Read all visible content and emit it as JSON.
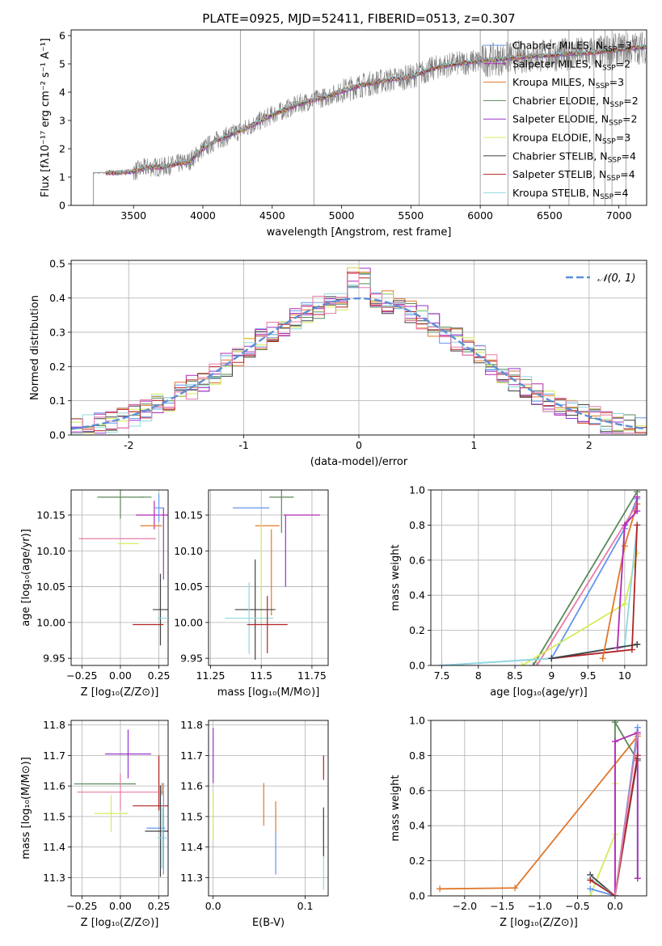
{
  "figure": {
    "title": "PLATE=0925, MJD=52411, FIBERID=0513, z=0.307"
  },
  "colors": {
    "Chabrier MILES": "#6495ed",
    "Salpeter MILES": "#b22ab2",
    "Kroupa MILES": "#e0782a",
    "Chabrier ELODIE": "#5a8a5a",
    "Salpeter ELODIE": "#9932cc",
    "Kroupa ELODIE": "#d4ec5a",
    "Chabrier STELIB": "#404040",
    "Salpeter STELIB": "#b22222",
    "Kroupa STELIB": "#8fd8e0",
    "pink": "#e87aa8",
    "data": "#808080",
    "gaussian": "#5b8fd6"
  },
  "chart_data": [
    {
      "type": "line",
      "id": "spectrum",
      "xlabel": "wavelength [Angstrom, rest frame]",
      "ylabel": "Flux [fλ10⁻¹⁷ erg cm⁻² s⁻¹ A⁻¹]",
      "xlim": [
        3050,
        7200
      ],
      "ylim": [
        0,
        6.2
      ],
      "xticks": [
        3500,
        4000,
        4500,
        5000,
        5500,
        6000,
        6500,
        7000
      ],
      "yticks": [
        0,
        1,
        2,
        3,
        4,
        5,
        6
      ],
      "grid": false,
      "legend": "upper-right",
      "legend_entries": [
        {
          "label": "Chabrier MILES, N",
          "sub": "SSP",
          "suffix": "=3",
          "color": "#6495ed"
        },
        {
          "label": "Salpeter MILES, N",
          "sub": "SSP",
          "suffix": "=2",
          "color": "#b22ab2"
        },
        {
          "label": "Kroupa MILES, N",
          "sub": "SSP",
          "suffix": "=3",
          "color": "#e0782a"
        },
        {
          "label": "Chabrier ELODIE, N",
          "sub": "SSP",
          "suffix": "=2",
          "color": "#5a8a5a"
        },
        {
          "label": "Salpeter ELODIE, N",
          "sub": "SSP",
          "suffix": "=2",
          "color": "#9932cc"
        },
        {
          "label": "Kroupa ELODIE, N",
          "sub": "SSP",
          "suffix": "=3",
          "color": "#d4ec5a"
        },
        {
          "label": "Chabrier STELIB, N",
          "sub": "SSP",
          "suffix": "=4",
          "color": "#404040"
        },
        {
          "label": "Salpeter STELIB, N",
          "sub": "SSP",
          "suffix": "=4",
          "color": "#b22222"
        },
        {
          "label": "Kroupa STELIB, N",
          "sub": "SSP",
          "suffix": "=4",
          "color": "#8fd8e0"
        }
      ],
      "continuum": [
        [
          3210,
          1.15
        ],
        [
          3400,
          1.15
        ],
        [
          3500,
          1.2
        ],
        [
          3600,
          1.35
        ],
        [
          3700,
          1.35
        ],
        [
          3800,
          1.45
        ],
        [
          3900,
          1.55
        ],
        [
          4000,
          2.0
        ],
        [
          4100,
          2.3
        ],
        [
          4300,
          2.7
        ],
        [
          4500,
          3.2
        ],
        [
          4700,
          3.6
        ],
        [
          4900,
          3.85
        ],
        [
          5100,
          4.2
        ],
        [
          5300,
          4.4
        ],
        [
          5500,
          4.55
        ],
        [
          5700,
          4.9
        ],
        [
          5900,
          5.05
        ],
        [
          6100,
          5.15
        ],
        [
          6300,
          5.25
        ],
        [
          6500,
          5.3
        ],
        [
          6800,
          5.4
        ],
        [
          7000,
          5.5
        ],
        [
          7200,
          5.6
        ]
      ],
      "spikes": [
        4270,
        4800,
        5560,
        6000,
        6200,
        6640,
        6820,
        6900,
        6950,
        7050
      ]
    },
    {
      "type": "bar",
      "id": "residuals",
      "xlabel": "(data-model)/error",
      "ylabel": "Normed distribution",
      "xlim": [
        -2.5,
        2.5
      ],
      "ylim": [
        0,
        0.51
      ],
      "xticks": [
        -2,
        -1,
        0,
        1,
        2
      ],
      "yticks": [
        0.0,
        0.1,
        0.2,
        0.3,
        0.4,
        0.5
      ],
      "grid": true,
      "legend": "upper-right",
      "legend_label": "𝒩(0, 1)",
      "bin_width": 0.1
    },
    {
      "type": "scatter",
      "id": "age-vs-Z",
      "xlabel": "Z [log₁₀(Z/Z⊙)]",
      "ylabel": "age  [log₁₀(age/yr)]",
      "xlim": [
        -0.32,
        0.31
      ],
      "ylim": [
        9.94,
        10.185
      ],
      "xticks": [
        -0.25,
        0.0,
        0.25
      ],
      "xticklabels": [
        "−0.25",
        "0.00",
        "0.25"
      ],
      "yticks": [
        9.95,
        10.0,
        10.05,
        10.1,
        10.15
      ],
      "grid": true,
      "points": [
        {
          "x": 0.0,
          "y": 10.175,
          "xerr": 0.15,
          "yerr": 0.03,
          "color": "#5a8a5a"
        },
        {
          "x": 0.17,
          "y": 10.175,
          "xerr": 0.0,
          "yerr": 0.0,
          "color": "#5a8a5a"
        },
        {
          "x": 0.22,
          "y": 10.15,
          "xerr": 0.12,
          "yerr": 0.02,
          "color": "#b22ab2"
        },
        {
          "x": 0.25,
          "y": 10.16,
          "xerr": 0.03,
          "yerr": 0.02,
          "color": "#6495ed"
        },
        {
          "x": 0.2,
          "y": 10.135,
          "xerr": 0.07,
          "yerr": 0.0,
          "color": "#e0782a"
        },
        {
          "x": -0.02,
          "y": 10.117,
          "xerr": 0.25,
          "yerr": 0.0,
          "color": "#e87aa8"
        },
        {
          "x": 0.05,
          "y": 10.11,
          "xerr": 0.07,
          "yerr": 0.0,
          "color": "#d4ec5a"
        },
        {
          "x": 0.28,
          "y": 10.11,
          "xerr": 0.0,
          "yerr": 0.05,
          "color": "#9932cc"
        },
        {
          "x": 0.26,
          "y": 10.018,
          "xerr": 0.05,
          "yerr": 0.05,
          "color": "#404040"
        },
        {
          "x": 0.27,
          "y": 10.006,
          "xerr": 0.03,
          "yerr": 0.0,
          "color": "#8fd8e0"
        },
        {
          "x": 0.18,
          "y": 9.997,
          "xerr": 0.1,
          "yerr": 0.0,
          "color": "#b22222"
        }
      ]
    },
    {
      "type": "scatter",
      "id": "age-vs-mass",
      "xlabel": "mass [log₁₀(M/M⊙)]",
      "ylabel": "",
      "xlim": [
        11.24,
        11.83
      ],
      "ylim": [
        9.94,
        10.185
      ],
      "xticks": [
        11.25,
        11.5,
        11.75
      ],
      "yticks": [
        9.95,
        10.0,
        10.05,
        10.1,
        10.15
      ],
      "grid": true,
      "points": [
        {
          "x": 11.6,
          "y": 10.175,
          "xerr": 0.06,
          "yerr": 0.05,
          "color": "#5a8a5a"
        },
        {
          "x": 11.45,
          "y": 10.16,
          "xerr": 0.09,
          "yerr": 0.0,
          "color": "#6495ed"
        },
        {
          "x": 11.7,
          "y": 10.15,
          "xerr": 0.09,
          "yerr": 0.0,
          "color": "#b22ab2"
        },
        {
          "x": 11.53,
          "y": 10.135,
          "xerr": 0.06,
          "yerr": 0.0,
          "color": "#e0782a"
        },
        {
          "x": 11.62,
          "y": 10.1,
          "xerr": 0.0,
          "yerr": 0.05,
          "color": "#9932cc"
        },
        {
          "x": 11.55,
          "y": 10.07,
          "xerr": 0.0,
          "yerr": 0.06,
          "color": "#e0782a"
        },
        {
          "x": 11.5,
          "y": 10.07,
          "xerr": 0.0,
          "yerr": 0.07,
          "color": "#d4ec5a"
        },
        {
          "x": 11.47,
          "y": 10.018,
          "xerr": 0.1,
          "yerr": 0.07,
          "color": "#404040"
        },
        {
          "x": 11.44,
          "y": 10.006,
          "xerr": 0.12,
          "yerr": 0.05,
          "color": "#8fd8e0"
        },
        {
          "x": 11.53,
          "y": 9.997,
          "xerr": 0.1,
          "yerr": 0.04,
          "color": "#b22222"
        }
      ]
    },
    {
      "type": "line",
      "id": "massweight-vs-age",
      "xlabel": "age  [log₁₀(age/yr)]",
      "ylabel": "mass weight",
      "xlim": [
        7.35,
        10.3
      ],
      "ylim": [
        0,
        1.0
      ],
      "xticks": [
        7.5,
        8.0,
        8.5,
        9.0,
        9.5,
        10.0
      ],
      "yticks": [
        0.0,
        0.2,
        0.4,
        0.6,
        0.8,
        1.0
      ],
      "grid": true,
      "series": [
        {
          "color": "#5a8a5a",
          "x": [
            8.75,
            10.17
          ],
          "y": [
            0.0,
            0.99
          ]
        },
        {
          "color": "#6495ed",
          "x": [
            7.5,
            9.0,
            10.0,
            10.17
          ],
          "y": [
            0.0,
            0.04,
            0.78,
            0.95
          ]
        },
        {
          "color": "#e87aa8",
          "x": [
            8.8,
            10.17
          ],
          "y": [
            0.0,
            0.92
          ]
        },
        {
          "color": "#d4ec5a",
          "x": [
            8.6,
            10.0,
            10.17
          ],
          "y": [
            0.0,
            0.35,
            0.64
          ]
        },
        {
          "color": "#8fd8e0",
          "x": [
            7.5,
            9.0,
            10.0,
            10.17
          ],
          "y": [
            0.0,
            0.04,
            0.11,
            0.8
          ]
        },
        {
          "color": "#b22222",
          "x": [
            9.0,
            10.1,
            10.17
          ],
          "y": [
            0.04,
            0.09,
            0.8
          ]
        },
        {
          "color": "#404040",
          "x": [
            9.0,
            10.17,
            10.17
          ],
          "y": [
            0.04,
            0.12,
            0.12
          ]
        },
        {
          "color": "#e0782a",
          "x": [
            9.7,
            10.0,
            10.17
          ],
          "y": [
            0.04,
            0.68,
            0.92
          ]
        },
        {
          "color": "#b22ab2",
          "x": [
            9.9,
            10.0,
            10.17,
            10.17
          ],
          "y": [
            0.1,
            0.8,
            0.88,
            0.96
          ]
        }
      ]
    },
    {
      "type": "scatter",
      "id": "mass-vs-Z",
      "xlabel": "Z [log₁₀(Z/Z⊙)]",
      "ylabel": "mass [log₁₀(M/M⊙)]",
      "xlim": [
        -0.32,
        0.31
      ],
      "ylim": [
        11.24,
        11.815
      ],
      "xticks": [
        -0.25,
        0.0,
        0.25
      ],
      "xticklabels": [
        "−0.25",
        "0.00",
        "0.25"
      ],
      "yticks": [
        11.3,
        11.4,
        11.5,
        11.6,
        11.7,
        11.8
      ],
      "grid": true,
      "points": [
        {
          "x": 0.05,
          "y": 11.705,
          "xerr": 0.15,
          "yerr": 0.08,
          "color": "#9932cc"
        },
        {
          "x": 0.25,
          "y": 11.61,
          "xerr": 0.0,
          "yerr": 0.09,
          "color": "#b22222"
        },
        {
          "x": -0.1,
          "y": 11.607,
          "xerr": 0.2,
          "yerr": 0.0,
          "color": "#5a8a5a"
        },
        {
          "x": 0.27,
          "y": 11.59,
          "xerr": 0.0,
          "yerr": 0.02,
          "color": "#e0782a"
        },
        {
          "x": 0.0,
          "y": 11.58,
          "xerr": 0.28,
          "yerr": 0.06,
          "color": "#e87aa8"
        },
        {
          "x": 0.2,
          "y": 11.535,
          "xerr": 0.12,
          "yerr": 0.0,
          "color": "#b22222"
        },
        {
          "x": -0.06,
          "y": 11.51,
          "xerr": 0.11,
          "yerr": 0.06,
          "color": "#d4ec5a"
        },
        {
          "x": 0.23,
          "y": 11.462,
          "xerr": 0.06,
          "yerr": 0.0,
          "color": "#6495ed"
        },
        {
          "x": 0.26,
          "y": 11.452,
          "xerr": 0.1,
          "yerr": 0.15,
          "color": "#404040"
        },
        {
          "x": 0.27,
          "y": 11.43,
          "xerr": 0.03,
          "yerr": 0.1,
          "color": "#8fd8e0"
        },
        {
          "x": 0.28,
          "y": 11.46,
          "xerr": 0.0,
          "yerr": 0.15,
          "color": "#6495ed"
        }
      ]
    },
    {
      "type": "scatter",
      "id": "mass-vs-ebv",
      "xlabel": "E(B-V)",
      "ylabel": "",
      "xlim": [
        -0.005,
        0.125
      ],
      "ylim": [
        11.24,
        11.815
      ],
      "xticks": [
        0.0,
        0.1
      ],
      "xticklabels": [
        "0.0",
        "0.1"
      ],
      "yticks": [
        11.3,
        11.4,
        11.5,
        11.6,
        11.7,
        11.8
      ],
      "grid": true,
      "points": [
        {
          "x": 0.0,
          "y": 11.7,
          "xerr": 0.0,
          "yerr": 0.09,
          "color": "#9932cc"
        },
        {
          "x": 0.0,
          "y": 11.5,
          "xerr": 0.0,
          "yerr": 0.08,
          "color": "#d4ec5a"
        },
        {
          "x": 0.055,
          "y": 11.54,
          "xerr": 0.0,
          "yerr": 0.07,
          "color": "#e0782a"
        },
        {
          "x": 0.068,
          "y": 11.38,
          "xerr": 0.0,
          "yerr": 0.07,
          "color": "#6495ed"
        },
        {
          "x": 0.068,
          "y": 11.5,
          "xerr": 0.0,
          "yerr": 0.05,
          "color": "#e0782a"
        },
        {
          "x": 0.12,
          "y": 11.66,
          "xerr": 0.0,
          "yerr": 0.04,
          "color": "#b22222"
        },
        {
          "x": 0.12,
          "y": 11.33,
          "xerr": 0.0,
          "yerr": 0.07,
          "color": "#8fd8e0"
        },
        {
          "x": 0.12,
          "y": 11.45,
          "xerr": 0.0,
          "yerr": 0.08,
          "color": "#404040"
        }
      ]
    },
    {
      "type": "line",
      "id": "massweight-vs-Z",
      "xlabel": "Z [log₁₀(Z/Z⊙)]",
      "ylabel": "mass weight",
      "xlim": [
        -2.45,
        0.42
      ],
      "ylim": [
        0,
        1.0
      ],
      "xticks": [
        -2.0,
        -1.5,
        -1.0,
        -0.5,
        0.0
      ],
      "xticklabels": [
        "−2.0",
        "−1.5",
        "−1.0",
        "−0.5",
        "0.0"
      ],
      "yticks": [
        0.0,
        0.2,
        0.4,
        0.6,
        0.8,
        1.0
      ],
      "grid": true,
      "series": [
        {
          "color": "#e0782a",
          "x": [
            -2.33,
            -1.33,
            0.3
          ],
          "y": [
            0.04,
            0.045,
            0.91
          ]
        },
        {
          "color": "#d4ec5a",
          "x": [
            -0.33,
            0.0,
            0.0
          ],
          "y": [
            0.0,
            0.35,
            0.64
          ]
        },
        {
          "color": "#5a8a5a",
          "x": [
            0.0,
            0.0,
            0.3
          ],
          "y": [
            0.0,
            0.99,
            0.77
          ]
        },
        {
          "color": "#404040",
          "x": [
            -0.33,
            0.0,
            0.3
          ],
          "y": [
            0.12,
            0.0,
            0.78
          ]
        },
        {
          "color": "#6495ed",
          "x": [
            -0.33,
            0.0,
            0.3,
            0.3
          ],
          "y": [
            0.04,
            0.0,
            0.96,
            0.1
          ]
        },
        {
          "color": "#8fd8e0",
          "x": [
            -0.33,
            0.0,
            0.3
          ],
          "y": [
            0.1,
            0.0,
            0.8
          ]
        },
        {
          "color": "#b22ab2",
          "x": [
            0.0,
            0.0,
            0.3,
            0.3
          ],
          "y": [
            0.0,
            0.88,
            0.93,
            0.1
          ]
        },
        {
          "color": "#b22222",
          "x": [
            -0.33,
            0.0,
            0.3
          ],
          "y": [
            0.09,
            0.0,
            0.8
          ]
        },
        {
          "color": "#e87aa8",
          "x": [
            0.0,
            0.3
          ],
          "y": [
            0.0,
            0.92
          ]
        }
      ]
    }
  ]
}
